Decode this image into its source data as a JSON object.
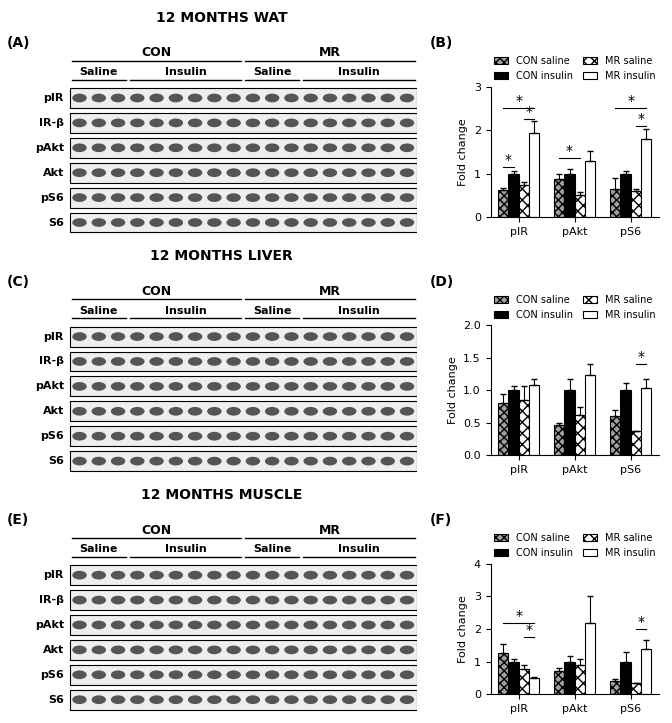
{
  "chart_data": [
    {
      "type": "bar",
      "panel": "(B)",
      "categories": [
        "pIR",
        "pAkt",
        "pS6"
      ],
      "ylabel": "Fold change",
      "ylim": [
        0,
        3
      ],
      "yticks": [
        0,
        1,
        2,
        3
      ],
      "legend": "top",
      "series": [
        {
          "name": "CON saline",
          "color": "#a0a0a0",
          "values": [
            0.62,
            0.88,
            0.65
          ],
          "errors": [
            0.05,
            0.1,
            0.25
          ]
        },
        {
          "name": "CON insulin",
          "color": "#000000",
          "values": [
            1.0,
            1.0,
            1.0
          ],
          "errors": [
            0.05,
            0.1,
            0.06
          ]
        },
        {
          "name": "MR saline",
          "color": "#ffffff",
          "values": [
            0.73,
            0.5,
            0.6
          ],
          "errors": [
            0.07,
            0.07,
            0.05
          ]
        },
        {
          "name": "MR insulin",
          "color": "#ffffff",
          "values": [
            1.93,
            1.28,
            1.8
          ],
          "errors": [
            0.28,
            0.25,
            0.22
          ]
        }
      ],
      "significance": [
        {
          "category": "pIR",
          "from": "CON saline",
          "to": "CON insulin",
          "y": 1.15,
          "text": "*"
        },
        {
          "category": "pIR",
          "from": "CON saline",
          "to": "MR insulin",
          "y": 2.5,
          "text": "*"
        },
        {
          "category": "pIR",
          "from": "MR saline",
          "to": "MR insulin",
          "y": 2.25,
          "text": "*"
        },
        {
          "category": "pAkt",
          "from": "CON saline",
          "to": "MR saline",
          "y": 1.35,
          "text": "*"
        },
        {
          "category": "pS6",
          "from": "CON saline",
          "to": "MR insulin",
          "y": 2.5,
          "text": "*"
        },
        {
          "category": "pS6",
          "from": "MR saline",
          "to": "MR insulin",
          "y": 2.1,
          "text": "*"
        }
      ]
    },
    {
      "type": "bar",
      "panel": "(D)",
      "categories": [
        "pIR",
        "pAkt",
        "pS6"
      ],
      "ylabel": "Fold change",
      "ylim": [
        0,
        2
      ],
      "yticks": [
        {
          "value": 0,
          "label": "0.0"
        },
        {
          "value": 0.5,
          "label": "0.5"
        },
        {
          "value": 1,
          "label": "1.0"
        },
        {
          "value": 1.5,
          "label": "1.5"
        },
        {
          "value": 2,
          "label": "2.0"
        }
      ],
      "legend": "top",
      "series": [
        {
          "name": "CON saline",
          "color": "#a0a0a0",
          "values": [
            0.8,
            0.47,
            0.6
          ],
          "errors": [
            0.15,
            0.03,
            0.1
          ]
        },
        {
          "name": "CON insulin",
          "color": "#000000",
          "values": [
            1.0,
            1.0,
            1.0
          ],
          "errors": [
            0.07,
            0.17,
            0.12
          ]
        },
        {
          "name": "MR saline",
          "color": "#ffffff",
          "values": [
            0.85,
            0.62,
            0.37
          ],
          "errors": [
            0.22,
            0.13,
            0.01
          ]
        },
        {
          "name": "MR insulin",
          "color": "#ffffff",
          "values": [
            1.08,
            1.24,
            1.03
          ],
          "errors": [
            0.1,
            0.17,
            0.15
          ]
        }
      ],
      "significance": [
        {
          "category": "pS6",
          "from": "MR saline",
          "to": "MR insulin",
          "y": 1.4,
          "text": "*"
        }
      ]
    },
    {
      "type": "bar",
      "panel": "(F)",
      "categories": [
        "pIR",
        "pAkt",
        "pS6"
      ],
      "ylabel": "Fold change",
      "ylim": [
        0,
        4
      ],
      "yticks": [
        0,
        1,
        2,
        3,
        4
      ],
      "legend": "top",
      "series": [
        {
          "name": "CON saline",
          "color": "#a0a0a0",
          "values": [
            1.25,
            0.72,
            0.4
          ],
          "errors": [
            0.3,
            0.07,
            0.07
          ]
        },
        {
          "name": "CON insulin",
          "color": "#000000",
          "values": [
            1.0,
            1.0,
            1.0
          ],
          "errors": [
            0.07,
            0.18,
            0.3
          ]
        },
        {
          "name": "MR saline",
          "color": "#ffffff",
          "values": [
            0.78,
            0.88,
            0.33
          ],
          "errors": [
            0.1,
            0.2,
            0.02
          ]
        },
        {
          "name": "MR insulin",
          "color": "#ffffff",
          "values": [
            0.48,
            2.17,
            1.4
          ],
          "errors": [
            0.04,
            0.85,
            0.25
          ]
        }
      ],
      "significance": [
        {
          "category": "pIR",
          "from": "CON saline",
          "to": "MR insulin",
          "y": 2.2,
          "text": "*"
        },
        {
          "category": "pIR",
          "from": "MR saline",
          "to": "MR insulin",
          "y": 1.75,
          "text": "*"
        },
        {
          "category": "pS6",
          "from": "MR saline",
          "to": "MR insulin",
          "y": 2.0,
          "text": "*"
        }
      ]
    }
  ],
  "blots": [
    {
      "panel": "(A)",
      "title": "12 MONTHS WAT",
      "groups": [
        {
          "name": "CON",
          "subgroups": [
            {
              "name": "Saline",
              "lanes": 3
            },
            {
              "name": "Insulin",
              "lanes": 6
            }
          ]
        },
        {
          "name": "MR",
          "subgroups": [
            {
              "name": "Saline",
              "lanes": 3
            },
            {
              "name": "Insulin",
              "lanes": 6
            }
          ]
        }
      ],
      "rows": [
        "pIR",
        "IR-β",
        "pAkt",
        "Akt",
        "pS6",
        "S6"
      ]
    },
    {
      "panel": "(C)",
      "title": "12 MONTHS LIVER",
      "groups": [
        {
          "name": "CON",
          "subgroups": [
            {
              "name": "Saline",
              "lanes": 3
            },
            {
              "name": "Insulin",
              "lanes": 6
            }
          ]
        },
        {
          "name": "MR",
          "subgroups": [
            {
              "name": "Saline",
              "lanes": 3
            },
            {
              "name": "Insulin",
              "lanes": 6
            }
          ]
        }
      ],
      "rows": [
        "pIR",
        "IR-β",
        "pAkt",
        "Akt",
        "pS6",
        "S6"
      ]
    },
    {
      "panel": "(E)",
      "title": "12 MONTHS MUSCLE",
      "groups": [
        {
          "name": "CON",
          "subgroups": [
            {
              "name": "Saline",
              "lanes": 3
            },
            {
              "name": "Insulin",
              "lanes": 6
            }
          ]
        },
        {
          "name": "MR",
          "subgroups": [
            {
              "name": "Saline",
              "lanes": 3
            },
            {
              "name": "Insulin",
              "lanes": 6
            }
          ]
        }
      ],
      "rows": [
        "pIR",
        "IR-β",
        "pAkt",
        "Akt",
        "pS6",
        "S6"
      ]
    }
  ]
}
